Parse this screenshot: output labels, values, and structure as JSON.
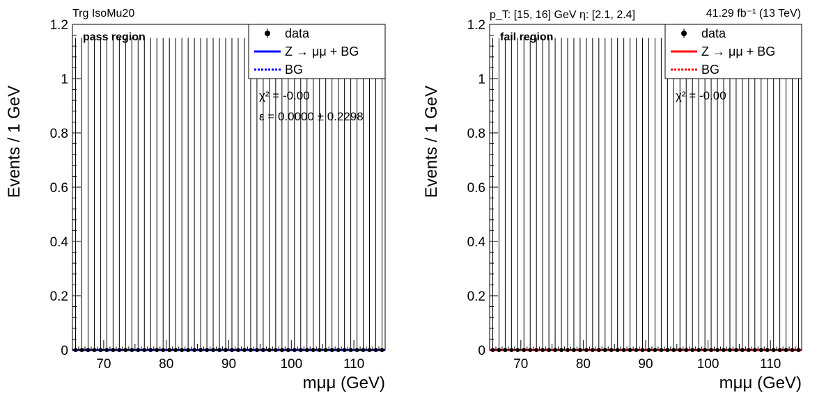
{
  "header": {
    "trigger": "Trg IsoMu20",
    "kinematics": "p_T: [15, 16] GeV η: [2.1, 2.4]",
    "lumi": "41.29 fb⁻¹ (13 TeV)"
  },
  "chart_data": [
    {
      "type": "scatter",
      "panel": "pass",
      "region_label": "pass region",
      "xlabel": "mμμ (GeV)",
      "ylabel": "Events / 1 GeV",
      "xlim": [
        65,
        115
      ],
      "ylim": [
        0,
        1.2
      ],
      "xticks": [
        70,
        80,
        90,
        100,
        110
      ],
      "yticks": [
        0,
        0.2,
        0.4,
        0.6,
        0.8,
        1,
        1.2
      ],
      "ytick_labels": [
        "0",
        "0.2",
        "0.4",
        "0.6",
        "0.8",
        "1",
        "1.2"
      ],
      "data": {
        "x": [
          65.5,
          66.5,
          67.5,
          68.5,
          69.5,
          70.5,
          71.5,
          72.5,
          73.5,
          74.5,
          75.5,
          76.5,
          77.5,
          78.5,
          79.5,
          80.5,
          81.5,
          82.5,
          83.5,
          84.5,
          85.5,
          86.5,
          87.5,
          88.5,
          89.5,
          90.5,
          91.5,
          92.5,
          93.5,
          94.5,
          95.5,
          96.5,
          97.5,
          98.5,
          99.5,
          100.5,
          101.5,
          102.5,
          103.5,
          104.5,
          105.5,
          106.5,
          107.5,
          108.5,
          109.5,
          110.5,
          111.5,
          112.5,
          113.5,
          114.5
        ],
        "y": [
          0,
          0,
          0,
          0,
          0,
          0,
          0,
          0,
          0,
          0,
          0,
          0,
          0,
          0,
          0,
          0,
          0,
          0,
          0,
          0,
          0,
          0,
          0,
          0,
          0,
          0,
          0,
          0,
          0,
          0,
          0,
          0,
          0,
          0,
          0,
          0,
          0,
          0,
          0,
          0,
          0,
          0,
          0,
          0,
          0,
          0,
          0,
          0,
          0,
          0
        ],
        "err_up": 1.15
      },
      "model_color": "#0000ff",
      "legend": {
        "entries": [
          {
            "label": "data",
            "style": "marker"
          },
          {
            "label": "Z → μμ + BG",
            "style": "solid"
          },
          {
            "label": "BG",
            "style": "dotted"
          }
        ]
      },
      "annotations": [
        "χ² = -0.00",
        "ε = 0.0000 ± 0.2298"
      ]
    },
    {
      "type": "scatter",
      "panel": "fail",
      "region_label": "fail region",
      "xlabel": "mμμ (GeV)",
      "ylabel": "Events / 1 GeV",
      "xlim": [
        65,
        115
      ],
      "ylim": [
        0,
        1.2
      ],
      "xticks": [
        70,
        80,
        90,
        100,
        110
      ],
      "yticks": [
        0,
        0.2,
        0.4,
        0.6,
        0.8,
        1,
        1.2
      ],
      "ytick_labels": [
        "0",
        "0.2",
        "0.4",
        "0.6",
        "0.8",
        "1",
        "1.2"
      ],
      "data": {
        "x": [
          65.5,
          66.5,
          67.5,
          68.5,
          69.5,
          70.5,
          71.5,
          72.5,
          73.5,
          74.5,
          75.5,
          76.5,
          77.5,
          78.5,
          79.5,
          80.5,
          81.5,
          82.5,
          83.5,
          84.5,
          85.5,
          86.5,
          87.5,
          88.5,
          89.5,
          90.5,
          91.5,
          92.5,
          93.5,
          94.5,
          95.5,
          96.5,
          97.5,
          98.5,
          99.5,
          100.5,
          101.5,
          102.5,
          103.5,
          104.5,
          105.5,
          106.5,
          107.5,
          108.5,
          109.5,
          110.5,
          111.5,
          112.5,
          113.5,
          114.5
        ],
        "y": [
          0,
          0,
          0,
          0,
          0,
          0,
          0,
          0,
          0,
          0,
          0,
          0,
          0,
          0,
          0,
          0,
          0,
          0,
          0,
          0,
          0,
          0,
          0,
          0,
          0,
          0,
          0,
          0,
          0,
          0,
          0,
          0,
          0,
          0,
          0,
          0,
          0,
          0,
          0,
          0,
          0,
          0,
          0,
          0,
          0,
          0,
          0,
          0,
          0,
          0
        ],
        "err_up": 1.15
      },
      "model_color": "#ff0000",
      "legend": {
        "entries": [
          {
            "label": "data",
            "style": "marker"
          },
          {
            "label": "Z → μμ + BG",
            "style": "solid"
          },
          {
            "label": "BG",
            "style": "dotted"
          }
        ]
      },
      "annotations": [
        "χ² = -0.00"
      ]
    }
  ]
}
